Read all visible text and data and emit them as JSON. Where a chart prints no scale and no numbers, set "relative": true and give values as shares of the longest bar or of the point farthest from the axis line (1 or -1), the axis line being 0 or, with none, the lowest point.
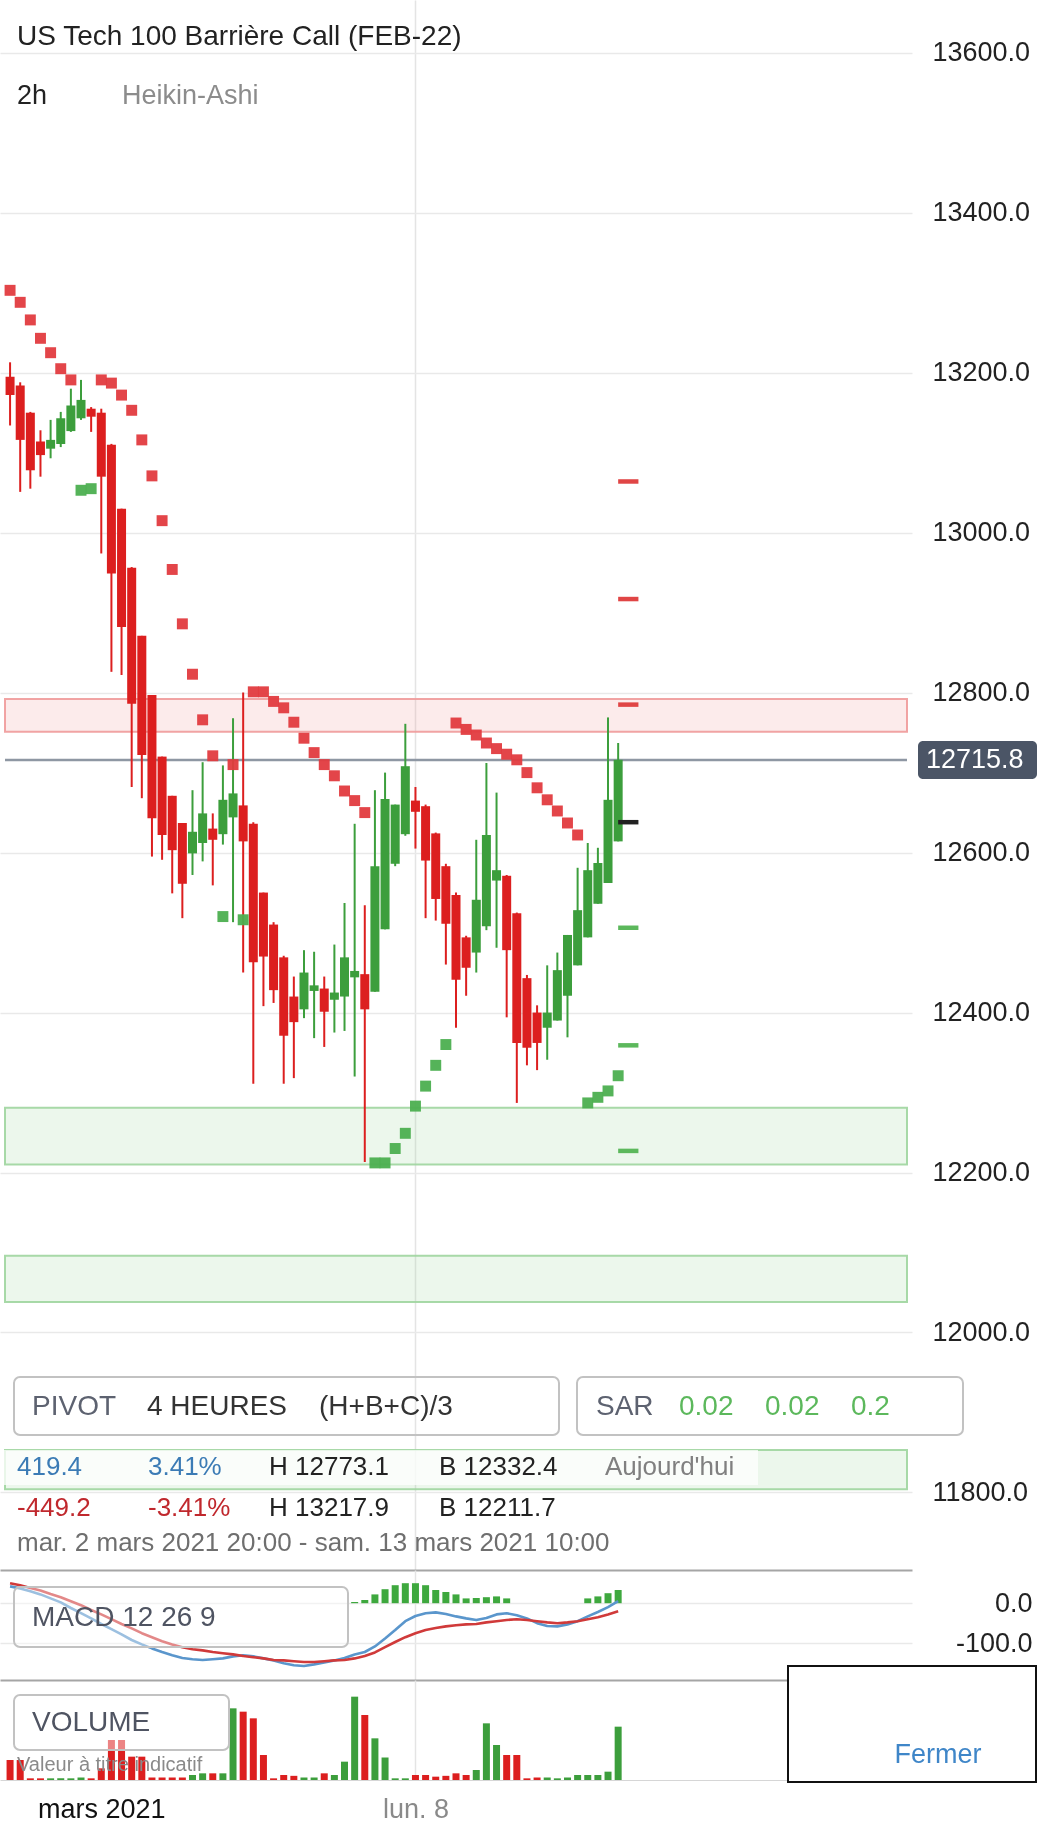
{
  "chart_data": [
    {
      "type": "candlestick",
      "title": "US Tech 100 Barrière Call (FEB-22)",
      "subtitle": "2h",
      "categories": [
        null,
        null,
        null,
        null,
        null,
        null,
        null,
        null,
        null,
        "mars 2021",
        null,
        null,
        null,
        null,
        null,
        null,
        null,
        null,
        null,
        null,
        null,
        null,
        null,
        null,
        null,
        null,
        null,
        null,
        null,
        null,
        null,
        null,
        null,
        null,
        null,
        null,
        null,
        null,
        null,
        null,
        "lun. 8",
        null,
        null,
        null,
        null,
        null,
        null,
        null,
        null,
        null,
        null,
        null,
        null,
        null,
        null,
        null,
        null,
        null,
        null,
        null,
        null,
        null,
        null,
        null,
        null,
        null,
        null,
        null,
        null,
        null,
        null,
        null,
        null,
        null,
        null,
        null,
        null,
        null,
        null,
        null,
        null,
        null,
        null,
        null,
        null,
        null,
        null,
        null,
        null
      ],
      "ohlc": [
        [
          13195,
          13213,
          13134,
          13172
        ],
        [
          13184,
          13188,
          13051,
          13116
        ],
        [
          13150,
          13151,
          13055,
          13078
        ],
        [
          13114,
          13128,
          13070,
          13097
        ],
        [
          13105,
          13141,
          13093,
          13116
        ],
        [
          13111,
          13151,
          13107,
          13143
        ],
        [
          13127,
          13180,
          13126,
          13159
        ],
        [
          13143,
          13191,
          13141,
          13166
        ],
        [
          13155,
          13157,
          13126,
          13145
        ],
        [
          13150,
          13155,
          12974,
          13070
        ],
        [
          13110,
          13111,
          12826,
          12949
        ],
        [
          13030,
          13030,
          12822,
          12882
        ],
        [
          12956,
          12957,
          12682,
          12786
        ],
        [
          12871,
          12871,
          12668,
          12722
        ],
        [
          12797,
          12797,
          12595,
          12643
        ],
        [
          12720,
          12720,
          12591,
          12622
        ],
        [
          12671,
          12671,
          12549,
          12603
        ],
        [
          12637,
          12637,
          12518,
          12561
        ],
        [
          12599,
          12678,
          12572,
          12626
        ],
        [
          12612,
          12713,
          12589,
          12649
        ],
        [
          12630,
          12649,
          12559,
          12616
        ],
        [
          12623,
          12709,
          12610,
          12666
        ],
        [
          12644,
          12768,
          12513,
          12674
        ],
        [
          12659,
          12800,
          12450,
          12614
        ],
        [
          12636,
          12638,
          12311,
          12463
        ],
        [
          12550,
          12550,
          12408,
          12470
        ],
        [
          12510,
          12513,
          12412,
          12428
        ],
        [
          12469,
          12471,
          12311,
          12371
        ],
        [
          12420,
          12445,
          12318,
          12388
        ],
        [
          12404,
          12478,
          12393,
          12450
        ],
        [
          12427,
          12476,
          12368,
          12434
        ],
        [
          12430,
          12445,
          12357,
          12401
        ],
        [
          12416,
          12485,
          12375,
          12425
        ],
        [
          12420,
          12537,
          12377,
          12469
        ],
        [
          12444,
          12636,
          12320,
          12452
        ],
        [
          12448,
          12534,
          12213,
          12404
        ],
        [
          12426,
          12678,
          12426,
          12583
        ],
        [
          12504,
          12700,
          12504,
          12667
        ],
        [
          12586,
          12660,
          12583,
          12660
        ],
        [
          12623,
          12761,
          12621,
          12708
        ],
        [
          12665,
          12682,
          12605,
          12651
        ],
        [
          12658,
          12660,
          12518,
          12590
        ],
        [
          12624,
          12625,
          12515,
          12542
        ],
        [
          12583,
          12586,
          12460,
          12511
        ],
        [
          12547,
          12550,
          12381,
          12441
        ],
        [
          12494,
          12496,
          12421,
          12456
        ],
        [
          12475,
          12616,
          12450,
          12541
        ],
        [
          12508,
          12712,
          12503,
          12622
        ],
        [
          12565,
          12675,
          12481,
          12578
        ],
        [
          12571,
          12572,
          12394,
          12478
        ],
        [
          12524,
          12525,
          12287,
          12362
        ],
        [
          12443,
          12447,
          12334,
          12356
        ],
        [
          12400,
          12409,
          12328,
          12362
        ],
        [
          12381,
          12459,
          12341,
          12400
        ],
        [
          12390,
          12475,
          12390,
          12453
        ],
        [
          12421,
          12497,
          12369,
          12497
        ],
        [
          12459,
          12581,
          12459,
          12528
        ],
        [
          12494,
          12612,
          12494,
          12578
        ],
        [
          12536,
          12606,
          12536,
          12587
        ],
        [
          12562,
          12769,
          12562,
          12666
        ],
        [
          12614,
          12737,
          12614,
          12716
        ],
        null,
        null,
        null,
        null,
        null,
        null,
        null,
        null,
        null,
        null,
        null,
        null,
        null,
        null,
        null,
        null,
        null,
        null,
        null,
        null,
        null,
        null,
        null,
        null,
        null,
        null,
        null,
        null
      ],
      "colors": [
        "#dc1f1f",
        "#dc1f1f",
        "#dc1f1f",
        "#dc1f1f",
        "#3c9e3c",
        "#3c9e3c",
        "#3c9e3c",
        "#3c9e3c",
        "#dc1f1f",
        "#dc1f1f",
        "#dc1f1f",
        "#dc1f1f",
        "#dc1f1f",
        "#dc1f1f",
        "#dc1f1f",
        "#dc1f1f",
        "#dc1f1f",
        "#dc1f1f",
        "#3c9e3c",
        "#3c9e3c",
        "#dc1f1f",
        "#3c9e3c",
        "#3c9e3c",
        "#dc1f1f",
        "#dc1f1f",
        "#dc1f1f",
        "#dc1f1f",
        "#dc1f1f",
        "#dc1f1f",
        "#3c9e3c",
        "#3c9e3c",
        "#dc1f1f",
        "#3c9e3c",
        "#3c9e3c",
        "#3c9e3c",
        "#dc1f1f",
        "#3c9e3c",
        "#3c9e3c",
        "#3c9e3c",
        "#3c9e3c",
        "#dc1f1f",
        "#dc1f1f",
        "#dc1f1f",
        "#dc1f1f",
        "#dc1f1f",
        "#dc1f1f",
        "#3c9e3c",
        "#3c9e3c",
        "#3c9e3c",
        "#dc1f1f",
        "#dc1f1f",
        "#dc1f1f",
        "#dc1f1f",
        "#3c9e3c",
        "#3c9e3c",
        "#3c9e3c",
        "#3c9e3c",
        "#3c9e3c",
        "#3c9e3c",
        "#3c9e3c",
        "#3c9e3c",
        null,
        null,
        null,
        null,
        null,
        null,
        null,
        null,
        null,
        null,
        null,
        null,
        null,
        null,
        null,
        null,
        null,
        null,
        null,
        null,
        null,
        null,
        null,
        null,
        null,
        null,
        null,
        null
      ],
      "series": [
        {
          "type": "scatter",
          "marker": "square",
          "color": "#e23b3f",
          "values": [
            13303,
            13288,
            13266,
            13243,
            13225,
            13205,
            13191,
            null,
            null,
            13191,
            13187,
            13172,
            13153,
            13116,
            13071,
            13015,
            12954,
            12886,
            12823,
            12766,
            12721,
            null,
            12710,
            null,
            12801,
            12801,
            12789,
            12781,
            12763,
            12743,
            12725,
            12710,
            12696,
            12677,
            12665,
            12650,
            null,
            null,
            null,
            null,
            null,
            null,
            null,
            null,
            12762,
            12754,
            12747,
            12737,
            12730,
            12723,
            12716,
            12700,
            12681,
            12666,
            12652,
            12637,
            12622,
            null,
            null,
            null,
            null,
            null,
            null,
            null,
            null,
            null,
            null,
            null,
            null,
            null,
            null,
            null,
            null,
            null,
            null,
            null,
            null,
            null,
            null,
            null,
            null,
            null,
            null,
            null,
            null,
            null,
            null,
            null,
            null
          ]
        },
        {
          "type": "scatter",
          "marker": "square",
          "color": "#4caf50",
          "values": [
            null,
            null,
            null,
            null,
            null,
            null,
            null,
            13053,
            13055,
            null,
            null,
            null,
            null,
            null,
            null,
            null,
            null,
            null,
            null,
            null,
            null,
            12520,
            null,
            12516,
            null,
            null,
            null,
            null,
            null,
            null,
            null,
            null,
            null,
            null,
            null,
            null,
            12212,
            12212,
            12230,
            12249,
            12283,
            12308,
            12334,
            12360,
            null,
            null,
            null,
            null,
            null,
            null,
            null,
            null,
            null,
            null,
            null,
            null,
            null,
            12287,
            12294,
            12302,
            12321,
            null,
            null,
            null,
            null,
            null,
            null,
            null,
            null,
            null,
            null,
            null,
            null,
            null,
            null,
            null,
            null,
            null,
            null,
            null,
            null,
            null,
            null,
            null,
            null,
            null,
            null,
            null,
            null
          ]
        },
        {
          "type": "line",
          "color": "#e04545",
          "values": [
            null,
            null,
            null,
            null,
            null,
            null,
            null,
            null,
            null,
            null,
            null,
            null,
            null,
            null,
            null,
            null,
            null,
            null,
            null,
            null,
            null,
            null,
            null,
            null,
            null,
            null,
            null,
            null,
            null,
            null,
            null,
            null,
            null,
            null,
            null,
            null,
            null,
            null,
            null,
            null,
            null,
            null,
            null,
            null,
            null,
            null,
            null,
            null,
            null,
            null,
            null,
            null,
            null,
            null,
            null,
            null,
            null,
            null,
            null,
            null,
            13064,
            13064,
            13064,
            null,
            null,
            null,
            null,
            null,
            null,
            null,
            null,
            null,
            null,
            null,
            null,
            null,
            null,
            null,
            null,
            null,
            null,
            null,
            null,
            null,
            null,
            null,
            null,
            null,
            null
          ]
        },
        {
          "type": "line",
          "color": "#e04545",
          "values": [
            null,
            null,
            null,
            null,
            null,
            null,
            null,
            null,
            null,
            null,
            null,
            null,
            null,
            null,
            null,
            null,
            null,
            null,
            null,
            null,
            null,
            null,
            null,
            null,
            null,
            null,
            null,
            null,
            null,
            null,
            null,
            null,
            null,
            null,
            null,
            null,
            null,
            null,
            null,
            null,
            null,
            null,
            null,
            null,
            null,
            null,
            null,
            null,
            null,
            null,
            null,
            null,
            null,
            null,
            null,
            null,
            null,
            null,
            null,
            null,
            12917,
            12917,
            12917,
            null,
            null,
            null,
            null,
            null,
            null,
            null,
            null,
            null,
            null,
            null,
            null,
            null,
            null,
            null,
            null,
            null,
            null,
            null,
            null,
            null,
            null,
            null,
            null,
            null,
            null
          ]
        },
        {
          "type": "line",
          "color": "#e04545",
          "values": [
            null,
            null,
            null,
            null,
            null,
            null,
            null,
            null,
            null,
            null,
            null,
            null,
            null,
            null,
            null,
            null,
            null,
            null,
            null,
            null,
            null,
            null,
            null,
            null,
            null,
            null,
            null,
            null,
            null,
            null,
            null,
            null,
            null,
            null,
            null,
            null,
            null,
            null,
            null,
            null,
            null,
            null,
            null,
            null,
            null,
            null,
            null,
            null,
            null,
            null,
            null,
            null,
            null,
            null,
            null,
            null,
            null,
            null,
            null,
            null,
            12785,
            12785,
            12785,
            null,
            null,
            null,
            null,
            null,
            null,
            null,
            null,
            null,
            null,
            null,
            null,
            null,
            null,
            null,
            null,
            null,
            null,
            null,
            null,
            null,
            null,
            null,
            null,
            null,
            null
          ]
        },
        {
          "type": "line",
          "color": "#222222",
          "values": [
            null,
            null,
            null,
            null,
            null,
            null,
            null,
            null,
            null,
            null,
            null,
            null,
            null,
            null,
            null,
            null,
            null,
            null,
            null,
            null,
            null,
            null,
            null,
            null,
            null,
            null,
            null,
            null,
            null,
            null,
            null,
            null,
            null,
            null,
            null,
            null,
            null,
            null,
            null,
            null,
            null,
            null,
            null,
            null,
            null,
            null,
            null,
            null,
            null,
            null,
            null,
            null,
            null,
            null,
            null,
            null,
            null,
            null,
            null,
            null,
            12638,
            12638,
            12638,
            null,
            null,
            null,
            null,
            null,
            null,
            null,
            null,
            null,
            null,
            null,
            null,
            null,
            null,
            null,
            null,
            null,
            null,
            null,
            null,
            null,
            null,
            null,
            null,
            null,
            null
          ]
        },
        {
          "type": "line",
          "color": "#5cb85c",
          "values": [
            null,
            null,
            null,
            null,
            null,
            null,
            null,
            null,
            null,
            null,
            null,
            null,
            null,
            null,
            null,
            null,
            null,
            null,
            null,
            null,
            null,
            null,
            null,
            null,
            null,
            null,
            null,
            null,
            null,
            null,
            null,
            null,
            null,
            null,
            null,
            null,
            null,
            null,
            null,
            null,
            null,
            null,
            null,
            null,
            null,
            null,
            null,
            null,
            null,
            null,
            null,
            null,
            null,
            null,
            null,
            null,
            null,
            null,
            null,
            null,
            12506,
            12506,
            12506,
            null,
            null,
            null,
            null,
            null,
            null,
            null,
            null,
            null,
            null,
            null,
            null,
            null,
            null,
            null,
            null,
            null,
            null,
            null,
            null,
            null,
            null,
            null,
            null,
            null,
            null
          ]
        },
        {
          "type": "line",
          "color": "#5cb85c",
          "values": [
            null,
            null,
            null,
            null,
            null,
            null,
            null,
            null,
            null,
            null,
            null,
            null,
            null,
            null,
            null,
            null,
            null,
            null,
            null,
            null,
            null,
            null,
            null,
            null,
            null,
            null,
            null,
            null,
            null,
            null,
            null,
            null,
            null,
            null,
            null,
            null,
            null,
            null,
            null,
            null,
            null,
            null,
            null,
            null,
            null,
            null,
            null,
            null,
            null,
            null,
            null,
            null,
            null,
            null,
            null,
            null,
            null,
            null,
            null,
            null,
            12359,
            12359,
            12359,
            null,
            null,
            null,
            null,
            null,
            null,
            null,
            null,
            null,
            null,
            null,
            null,
            null,
            null,
            null,
            null,
            null,
            null,
            null,
            null,
            null,
            null,
            null,
            null,
            null,
            null
          ]
        },
        {
          "type": "line",
          "color": "#5cb85c",
          "values": [
            null,
            null,
            null,
            null,
            null,
            null,
            null,
            null,
            null,
            null,
            null,
            null,
            null,
            null,
            null,
            null,
            null,
            null,
            null,
            null,
            null,
            null,
            null,
            null,
            null,
            null,
            null,
            null,
            null,
            null,
            null,
            null,
            null,
            null,
            null,
            null,
            null,
            null,
            null,
            null,
            null,
            null,
            null,
            null,
            null,
            null,
            null,
            null,
            null,
            null,
            null,
            null,
            null,
            null,
            null,
            null,
            null,
            null,
            null,
            null,
            12227,
            12227,
            12227,
            null,
            null,
            null,
            null,
            null,
            null,
            null,
            null,
            null,
            null,
            null,
            null,
            null,
            null,
            null,
            null,
            null,
            null,
            null,
            null,
            null,
            null,
            null,
            null,
            null,
            null
          ]
        }
      ],
      "ylim": [
        11703,
        13666
      ],
      "yticks": [
        {
          "value": 11800,
          "label": "11800.0"
        },
        {
          "value": 12000,
          "label": "12000.0"
        },
        {
          "value": 12200,
          "label": "12200.0"
        },
        {
          "value": 12400,
          "label": "12400.0"
        },
        {
          "value": 12600,
          "label": "12600.0"
        },
        {
          "value": 12800,
          "label": "12800.0"
        },
        {
          "value": 13000,
          "label": "13000.0"
        },
        {
          "value": 13200,
          "label": "13200.0"
        },
        {
          "value": 13400,
          "label": "13400.0"
        },
        {
          "value": 13600,
          "label": "13600.0"
        }
      ],
      "bands": [
        {
          "axis": "y",
          "from": 12751,
          "to": 12792,
          "color": "#f09a9a"
        },
        {
          "axis": "y",
          "from": 12210,
          "to": 12281,
          "color": "#9fd59f"
        },
        {
          "axis": "y",
          "from": 12038,
          "to": 12096,
          "color": "#9fd59f"
        },
        {
          "axis": "y",
          "from": 11804,
          "to": 11853,
          "color": "#9fd59f"
        }
      ],
      "ref_lines": [
        {
          "axis": "y",
          "value": 12715.8,
          "label": "12715.8",
          "color": "#8e97a3"
        }
      ],
      "grid": true,
      "tick_labels": "y",
      "annotations": [
        "Heikin-Ashi",
        "PIVOT",
        "4 HEURES",
        "(H+B+C)/3",
        "SAR",
        "0.02",
        "0.02",
        "0.2",
        "419.4",
        "3.41%",
        "H 12773.1",
        "B 12332.4",
        "Aujourd'hui",
        "-449.2",
        "-3.41%",
        "H 13217.9",
        "B 12211.7",
        "mar. 2 mars 2021 20:00 - sam. 13 mars 2021 10:00"
      ]
    },
    {
      "type": "line",
      "title": "MACD 12 26 9",
      "categories": [
        null,
        null,
        null,
        null,
        null,
        null,
        null,
        null,
        null,
        "mars 2021",
        null,
        null,
        null,
        null,
        null,
        null,
        null,
        null,
        null,
        null,
        null,
        null,
        null,
        null,
        null,
        null,
        null,
        null,
        null,
        null,
        null,
        null,
        null,
        null,
        null,
        null,
        null,
        null,
        null,
        null,
        "lun. 8",
        null,
        null,
        null,
        null,
        null,
        null,
        null,
        null,
        null,
        null,
        null,
        null,
        null,
        null,
        null,
        null,
        null,
        null,
        null,
        null,
        null,
        null,
        null,
        null,
        null,
        null,
        null,
        null,
        null,
        null,
        null,
        null,
        null,
        null,
        null,
        null,
        null,
        null,
        null,
        null,
        null,
        null,
        null,
        null,
        null,
        null,
        null,
        null
      ],
      "series": [
        {
          "type": "bar",
          "color": "#3ea83e",
          "values": [
            null,
            null,
            null,
            null,
            null,
            null,
            null,
            null,
            null,
            null,
            null,
            null,
            null,
            null,
            null,
            null,
            null,
            null,
            null,
            null,
            null,
            null,
            null,
            null,
            null,
            null,
            null,
            null,
            null,
            null,
            null,
            null,
            null,
            null,
            3,
            8,
            22,
            35,
            45,
            50,
            50,
            45,
            33,
            28,
            22,
            12,
            13,
            15,
            17,
            12,
            null,
            null,
            null,
            null,
            null,
            null,
            null,
            12,
            17,
            25,
            33,
            null,
            null,
            null,
            null,
            null,
            null,
            null,
            null,
            null,
            null,
            null,
            null,
            null,
            null,
            null,
            null,
            null,
            null,
            null,
            null,
            null,
            null,
            null,
            null,
            null,
            null,
            null,
            null
          ]
        },
        {
          "type": "line",
          "color": "#5a96cc",
          "values": [
            42,
            37,
            30,
            22,
            12,
            2,
            -12,
            -25,
            -38,
            -52,
            -65,
            -78,
            -92,
            -103,
            -113,
            -122,
            -130,
            -137,
            -140,
            -142,
            -140,
            -138,
            -133,
            -130,
            -133,
            -138,
            -143,
            -150,
            -155,
            -157,
            -153,
            -148,
            -143,
            -137,
            -128,
            -122,
            -108,
            -88,
            -67,
            -45,
            -32,
            -25,
            -23,
            -27,
            -33,
            -38,
            -42,
            -37,
            -28,
            -25,
            -30,
            -38,
            -50,
            -57,
            -58,
            -53,
            -45,
            -33,
            -22,
            -10,
            5,
            null,
            null,
            null,
            null,
            null,
            null,
            null,
            null,
            null,
            null,
            null,
            null,
            null,
            null,
            null,
            null,
            null,
            null,
            null,
            null,
            null,
            null,
            null,
            null,
            null,
            null,
            null,
            null
          ]
        },
        {
          "type": "line",
          "color": "#d03a3a",
          "values": [
            50,
            45,
            38,
            32,
            23,
            15,
            5,
            -5,
            -17,
            -28,
            -40,
            -52,
            -63,
            -75,
            -85,
            -95,
            -103,
            -110,
            -115,
            -118,
            -122,
            -125,
            -128,
            -132,
            -135,
            -138,
            -142,
            -143,
            -145,
            -147,
            -147,
            -145,
            -143,
            -142,
            -138,
            -132,
            -123,
            -110,
            -97,
            -85,
            -75,
            -67,
            -62,
            -58,
            -55,
            -53,
            -52,
            -48,
            -45,
            -42,
            -40,
            -42,
            -45,
            -48,
            -50,
            -48,
            -45,
            -40,
            -35,
            -28,
            -20,
            null,
            null,
            null,
            null,
            null,
            null,
            null,
            null,
            null,
            null,
            null,
            null,
            null,
            null,
            null,
            null,
            null,
            null,
            null,
            null,
            null,
            null,
            null,
            null,
            null,
            null,
            null,
            null
          ]
        }
      ],
      "ylim": [
        -192,
        83
      ],
      "yticks": [
        {
          "value": 0,
          "label": "0.0"
        },
        {
          "value": -100,
          "label": "-100.0"
        }
      ],
      "grid": true,
      "tick_labels": "y"
    },
    {
      "type": "bar",
      "title": "VOLUME",
      "relative": true,
      "categories": [
        null,
        null,
        null,
        null,
        null,
        null,
        null,
        null,
        null,
        "mars 2021",
        null,
        null,
        null,
        null,
        null,
        null,
        null,
        null,
        null,
        null,
        null,
        null,
        null,
        null,
        null,
        null,
        null,
        null,
        null,
        null,
        null,
        null,
        null,
        null,
        null,
        null,
        null,
        null,
        null,
        null,
        "lun. 8",
        null,
        null,
        null,
        null,
        null,
        null,
        null,
        null,
        null,
        null,
        null,
        null,
        null,
        null,
        null,
        null,
        null,
        null,
        null,
        null,
        null,
        null,
        null,
        null,
        null,
        null,
        null,
        null,
        null,
        null,
        null,
        null,
        null,
        null,
        null,
        null,
        null,
        null,
        null,
        null,
        null,
        null,
        null,
        null,
        null,
        null,
        null,
        null
      ],
      "values": [
        0.24,
        0.24,
        0.02,
        0.02,
        0.02,
        0.02,
        0.02,
        0.03,
        0.02,
        0.14,
        0.48,
        0.48,
        0.28,
        0.28,
        0.03,
        0.03,
        0.03,
        0.03,
        0.06,
        0.08,
        0.08,
        0.08,
        0.86,
        0.82,
        0.74,
        0.3,
        0.02,
        0.06,
        0.05,
        0.03,
        0.03,
        0.08,
        0.06,
        0.22,
        1,
        0.78,
        0.5,
        0.27,
        0.02,
        0.02,
        0.06,
        0.06,
        0.04,
        0.05,
        0.08,
        0.06,
        0.12,
        0.68,
        0.42,
        0.3,
        0.3,
        0.02,
        0.03,
        0.03,
        0.02,
        0.03,
        0.06,
        0.06,
        0.06,
        0.1,
        0.64,
        null,
        null,
        null,
        null,
        null,
        null,
        null,
        null,
        null,
        null,
        null,
        null,
        null,
        null,
        null,
        null,
        null,
        null,
        null,
        null,
        null,
        null,
        null,
        null,
        null,
        null,
        null,
        null
      ],
      "colors": [
        "#dc1f1f",
        "#dc1f1f",
        "#dc1f1f",
        "#dc1f1f",
        "#3c9e3c",
        "#3c9e3c",
        "#3c9e3c",
        "#3c9e3c",
        "#dc1f1f",
        "#dc1f1f",
        "#dc1f1f",
        "#dc1f1f",
        "#dc1f1f",
        "#dc1f1f",
        "#dc1f1f",
        "#dc1f1f",
        "#dc1f1f",
        "#dc1f1f",
        "#3c9e3c",
        "#3c9e3c",
        "#dc1f1f",
        "#3c9e3c",
        "#3c9e3c",
        "#dc1f1f",
        "#dc1f1f",
        "#dc1f1f",
        "#dc1f1f",
        "#dc1f1f",
        "#dc1f1f",
        "#3c9e3c",
        "#3c9e3c",
        "#dc1f1f",
        "#3c9e3c",
        "#3c9e3c",
        "#3c9e3c",
        "#dc1f1f",
        "#3c9e3c",
        "#3c9e3c",
        "#3c9e3c",
        "#3c9e3c",
        "#dc1f1f",
        "#dc1f1f",
        "#dc1f1f",
        "#dc1f1f",
        "#dc1f1f",
        "#dc1f1f",
        "#3c9e3c",
        "#3c9e3c",
        "#3c9e3c",
        "#dc1f1f",
        "#dc1f1f",
        "#dc1f1f",
        "#dc1f1f",
        "#3c9e3c",
        "#3c9e3c",
        "#3c9e3c",
        "#3c9e3c",
        "#3c9e3c",
        "#3c9e3c",
        "#3c9e3c",
        "#3c9e3c",
        null,
        null,
        null,
        null,
        null,
        null,
        null,
        null,
        null,
        null,
        null,
        null,
        null,
        null,
        null,
        null,
        null,
        null,
        null,
        null,
        null,
        null,
        null,
        null,
        null,
        null,
        null,
        null
      ],
      "grid": "x",
      "tick_labels": "x",
      "annotations": [
        "Valeur à titre indicatif",
        "Fermer"
      ]
    }
  ]
}
